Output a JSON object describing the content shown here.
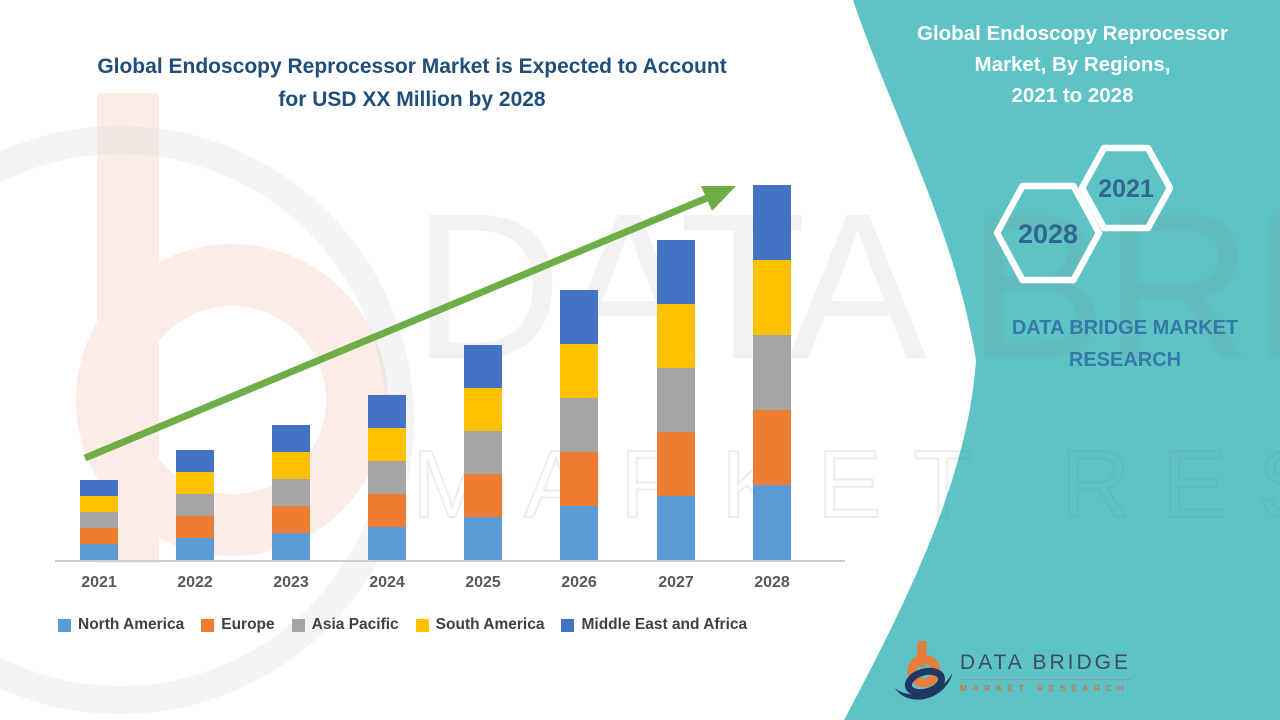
{
  "main_title": {
    "line1": "Global Endoscopy Reprocessor Market is Expected to Account",
    "line2": "for USD XX Million by 2028"
  },
  "side_panel": {
    "accent_color": "#5EC3C5",
    "title_line1": "Global Endoscopy Reprocessor",
    "title_line2": "Market, By Regions,",
    "title_line3": "2021 to 2028",
    "hex_small_year": "2021",
    "hex_large_year": "2028",
    "hex_year_color": "#31678F",
    "brand_caption_line1": "DATA BRIDGE MARKET",
    "brand_caption_line2": "RESEARCH"
  },
  "footer_logo": {
    "name": "DATA BRIDGE",
    "subtitle": "MARKET RESEARCH",
    "orange": "#E87E3C",
    "navy": "#1F3864"
  },
  "watermark": {
    "line1": "DATA BRIDGE",
    "line2": "MARKET RESEARCH"
  },
  "chart_data": {
    "type": "bar",
    "stacked": true,
    "title": "Global Endoscopy Reprocessor Market is Expected to Account for USD XX Million by 2028",
    "xlabel": "",
    "ylabel": "",
    "value_unit": "USD Million (values undisclosed, shown as XX); bar heights are relative index units",
    "value_axis_visible": false,
    "grid": false,
    "legend_position": "bottom",
    "categories": [
      "2021",
      "2022",
      "2023",
      "2024",
      "2025",
      "2026",
      "2027",
      "2028"
    ],
    "series": [
      {
        "name": "North America",
        "color": "#5B9BD5",
        "values": [
          16,
          22,
          27,
          33,
          43,
          54,
          64,
          75
        ]
      },
      {
        "name": "Europe",
        "color": "#ED7D31",
        "values": [
          16,
          22,
          27,
          33,
          43,
          54,
          64,
          75
        ]
      },
      {
        "name": "Asia Pacific",
        "color": "#A5A5A5",
        "values": [
          16,
          22,
          27,
          33,
          43,
          54,
          64,
          75
        ]
      },
      {
        "name": "South America",
        "color": "#FFC000",
        "values": [
          16,
          22,
          27,
          33,
          43,
          54,
          64,
          75
        ]
      },
      {
        "name": "Middle East and Africa",
        "color": "#4472C4",
        "values": [
          16,
          22,
          27,
          33,
          43,
          54,
          64,
          75
        ]
      }
    ],
    "totals": [
      80,
      110,
      135,
      165,
      215,
      270,
      320,
      375
    ],
    "trend_arrow": {
      "present": true,
      "color": "#6FAE46",
      "direction": "up-right"
    }
  }
}
